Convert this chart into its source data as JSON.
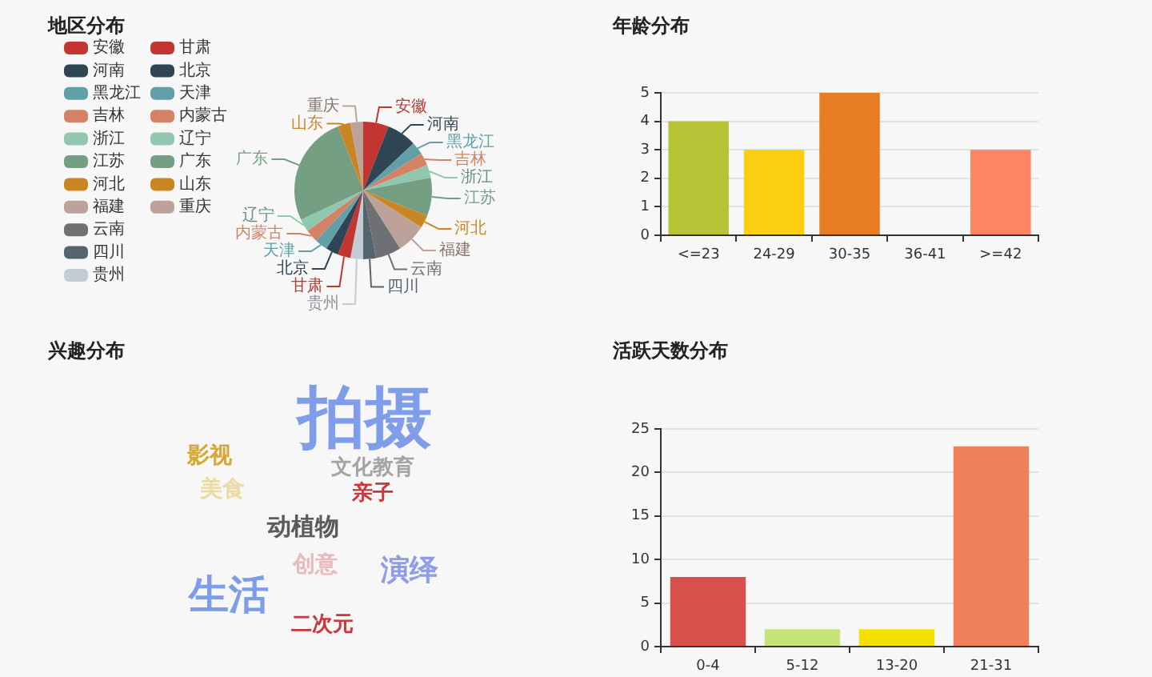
{
  "chart_data": [
    {
      "type": "pie",
      "title": "地区分布",
      "categories": [
        "安徽",
        "河南",
        "黑龙江",
        "吉林",
        "浙江",
        "江苏",
        "河北",
        "福建",
        "云南",
        "四川",
        "贵州",
        "甘肃",
        "北京",
        "天津",
        "内蒙古",
        "辽宁",
        "广东",
        "山东",
        "重庆"
      ],
      "values": [
        6,
        7,
        3,
        3,
        3,
        9,
        3,
        7,
        6,
        3,
        3,
        3,
        3,
        3,
        3,
        3,
        26,
        3,
        3
      ],
      "colors": [
        "#c23531",
        "#2f4554",
        "#61a0a8",
        "#d48265",
        "#91c7ae",
        "#749f83",
        "#ca8622",
        "#bda29a",
        "#6e7074",
        "#546570",
        "#c4ccd3",
        "#c23531",
        "#2f4554",
        "#61a0a8",
        "#d48265",
        "#91c7ae",
        "#749f83",
        "#ca8622",
        "#bda29a"
      ],
      "legend": "left"
    },
    {
      "type": "bar",
      "title": "年龄分布",
      "categories": [
        "<=23",
        "24-29",
        "30-35",
        "36-41",
        ">=42"
      ],
      "values": [
        4,
        3,
        5,
        0,
        3
      ],
      "colors": [
        "#b5c334",
        "#fcce10",
        "#e87c25",
        "#27727b",
        "#fe8463"
      ],
      "ylim": [
        0,
        5
      ],
      "yticks": [
        0,
        1,
        2,
        3,
        4,
        5
      ],
      "grid": "y"
    },
    {
      "type": "other",
      "title": "兴趣分布",
      "categories": [
        "拍摄",
        "文化教育",
        "亲子",
        "影视",
        "美食",
        "动植物",
        "创意",
        "演绎",
        "生活",
        "二次元"
      ],
      "colors": [
        "#7f9de9",
        "#a4a4a4",
        "#c9383c",
        "#d7a838",
        "#ecdaa6",
        "#5b5b5b",
        "#eab9bb",
        "#8e9de6",
        "#7d9ce9",
        "#c9383c"
      ]
    },
    {
      "type": "bar",
      "title": "活跃天数分布",
      "categories": [
        "0-4",
        "5-12",
        "13-20",
        "21-31"
      ],
      "values": [
        8,
        2,
        2,
        23
      ],
      "colors": [
        "#d7504b",
        "#c6e579",
        "#f4e001",
        "#f0805a"
      ],
      "ylim": [
        0,
        25
      ],
      "yticks": [
        0,
        5,
        10,
        15,
        20,
        25
      ],
      "grid": "y"
    }
  ]
}
